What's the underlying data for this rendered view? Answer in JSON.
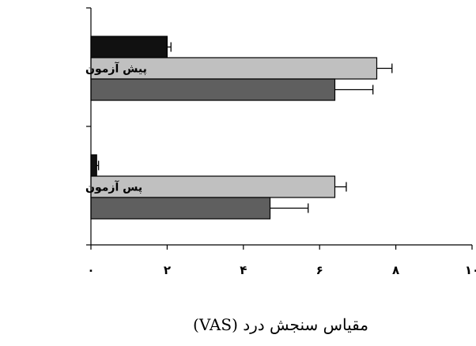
{
  "chart_data": {
    "type": "bar",
    "orientation": "horizontal",
    "categories": [
      "پیش آزمون",
      "پس آزمون"
    ],
    "series": [
      {
        "color": "#111111",
        "values": [
          2.0,
          0.15
        ],
        "errors": [
          0.1,
          0.05
        ]
      },
      {
        "color": "#c0c0c0",
        "values": [
          7.5,
          6.4
        ],
        "errors": [
          0.4,
          0.3
        ]
      },
      {
        "color": "#5f5f5f",
        "values": [
          6.4,
          4.7
        ],
        "errors": [
          1.0,
          1.0
        ]
      }
    ],
    "x_ticks": [
      "۰",
      "۲",
      "۴",
      "۶",
      "۸",
      "۱۰"
    ],
    "xlim": [
      0,
      10
    ],
    "xlabel": "مقیاس سنجش درد (VAS)",
    "grid": false,
    "legend": "none"
  }
}
